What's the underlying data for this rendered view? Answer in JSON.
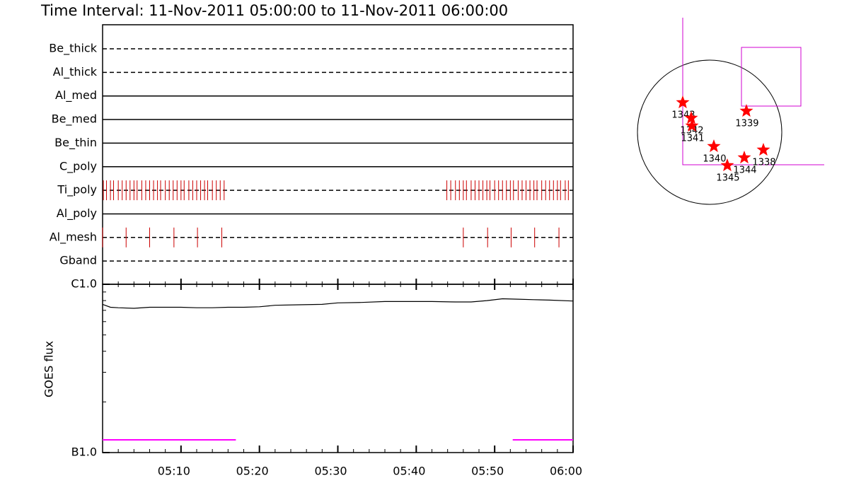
{
  "chart_data": [
    {
      "type": "timeline",
      "title": "Time Interval: 11-Nov-2011 05:00:00 to 11-Nov-2011 06:00:00",
      "xlim": [
        0,
        60
      ],
      "event_color": "#cc0000",
      "rows": [
        {
          "label": "Be_thick",
          "style": "dashed"
        },
        {
          "label": "Al_thick",
          "style": "dashed"
        },
        {
          "label": "Al_med",
          "style": "solid"
        },
        {
          "label": "Be_med",
          "style": "solid"
        },
        {
          "label": "Be_thin",
          "style": "solid"
        },
        {
          "label": "C_poly",
          "style": "solid"
        },
        {
          "label": "Ti_poly",
          "style": "dashed",
          "x": [
            0.1,
            0.5,
            1.0,
            1.4,
            2.0,
            2.5,
            3.0,
            3.5,
            4.0,
            4.4,
            5.0,
            5.5,
            6.0,
            6.5,
            7.0,
            7.4,
            8.0,
            8.5,
            9.0,
            9.5,
            10.0,
            10.4,
            11.0,
            11.5,
            12.0,
            12.5,
            13.0,
            13.4,
            14.0,
            14.5,
            15.0,
            15.5,
            43.9,
            44.4,
            45.0,
            45.5,
            46.0,
            46.4,
            47.0,
            47.5,
            48.0,
            48.5,
            49.0,
            49.4,
            50.0,
            50.5,
            51.0,
            51.5,
            52.0,
            52.4,
            53.0,
            53.5,
            54.0,
            54.5,
            55.0,
            55.4,
            56.0,
            56.5,
            57.0,
            57.5,
            58.0,
            58.4,
            59.0,
            59.4
          ]
        },
        {
          "label": "Al_poly",
          "style": "solid"
        },
        {
          "label": "Al_mesh",
          "style": "dashed",
          "x": [
            0.0,
            3.0,
            6.0,
            9.1,
            12.1,
            15.2,
            46.0,
            49.1,
            52.1,
            55.1,
            58.2
          ]
        },
        {
          "label": "Gband",
          "style": "dashed"
        }
      ]
    },
    {
      "type": "line",
      "log_y": true,
      "y_label": "GOES flux",
      "xlim": [
        0,
        60
      ],
      "xticks": [
        {
          "value": 10,
          "label": "05:10"
        },
        {
          "value": 20,
          "label": "05:20"
        },
        {
          "value": 30,
          "label": "05:30"
        },
        {
          "value": 40,
          "label": "05:40"
        },
        {
          "value": 50,
          "label": "05:50"
        },
        {
          "value": 60,
          "label": "06:00"
        }
      ],
      "minor_xticks": [
        2,
        4,
        6,
        8,
        12,
        14,
        16,
        18,
        22,
        24,
        26,
        28,
        32,
        34,
        36,
        38,
        42,
        44,
        46,
        48,
        52,
        54,
        56,
        58
      ],
      "ylim": [
        1e-07,
        1e-06
      ],
      "yticks": [
        {
          "value": 1e-07,
          "label": "B1.0"
        },
        {
          "value": 1e-06,
          "label": "C1.0"
        }
      ],
      "minor_yticks": [
        2e-07,
        3e-07,
        4e-07,
        5e-07,
        6e-07,
        7e-07,
        8e-07,
        9e-07
      ],
      "series": [
        {
          "color": "#000000",
          "x": [
            0,
            1,
            2,
            4,
            6,
            8,
            10,
            12,
            14,
            16,
            18,
            20,
            22,
            25,
            28,
            30,
            33,
            36,
            39,
            42,
            45,
            47,
            49,
            51,
            53,
            55,
            57,
            60
          ],
          "values": [
            7.6e-07,
            7.3e-07,
            7.25e-07,
            7.2e-07,
            7.3e-07,
            7.3e-07,
            7.3e-07,
            7.25e-07,
            7.25e-07,
            7.3e-07,
            7.3e-07,
            7.35e-07,
            7.5e-07,
            7.55e-07,
            7.6e-07,
            7.75e-07,
            7.8e-07,
            7.9e-07,
            7.9e-07,
            7.9e-07,
            7.85e-07,
            7.85e-07,
            8e-07,
            8.2e-07,
            8.15e-07,
            8.1e-07,
            8.05e-07,
            7.95e-07
          ]
        },
        {
          "color": "#ff00ff",
          "x": [
            0,
            17,
            17,
            52.3,
            60
          ],
          "values": [
            1.19e-07,
            1.19e-07,
            null,
            1.19e-07,
            1.19e-07
          ]
        }
      ]
    },
    {
      "type": "scatter",
      "xlim": [
        -960,
        960
      ],
      "ylim": [
        -960,
        960
      ],
      "color": "#ff0000",
      "points": [
        {
          "label": "1343",
          "x": -358,
          "y": 395
        },
        {
          "label": "1342",
          "x": -245,
          "y": 188
        },
        {
          "label": "1341",
          "x": -235,
          "y": 85
        },
        {
          "label": "1339",
          "x": 489,
          "y": 282
        },
        {
          "label": "1340",
          "x": 56,
          "y": -188
        },
        {
          "label": "1345",
          "x": 235,
          "y": -442
        },
        {
          "label": "1344",
          "x": 461,
          "y": -339
        },
        {
          "label": "1338",
          "x": 715,
          "y": -235
        }
      ]
    }
  ]
}
